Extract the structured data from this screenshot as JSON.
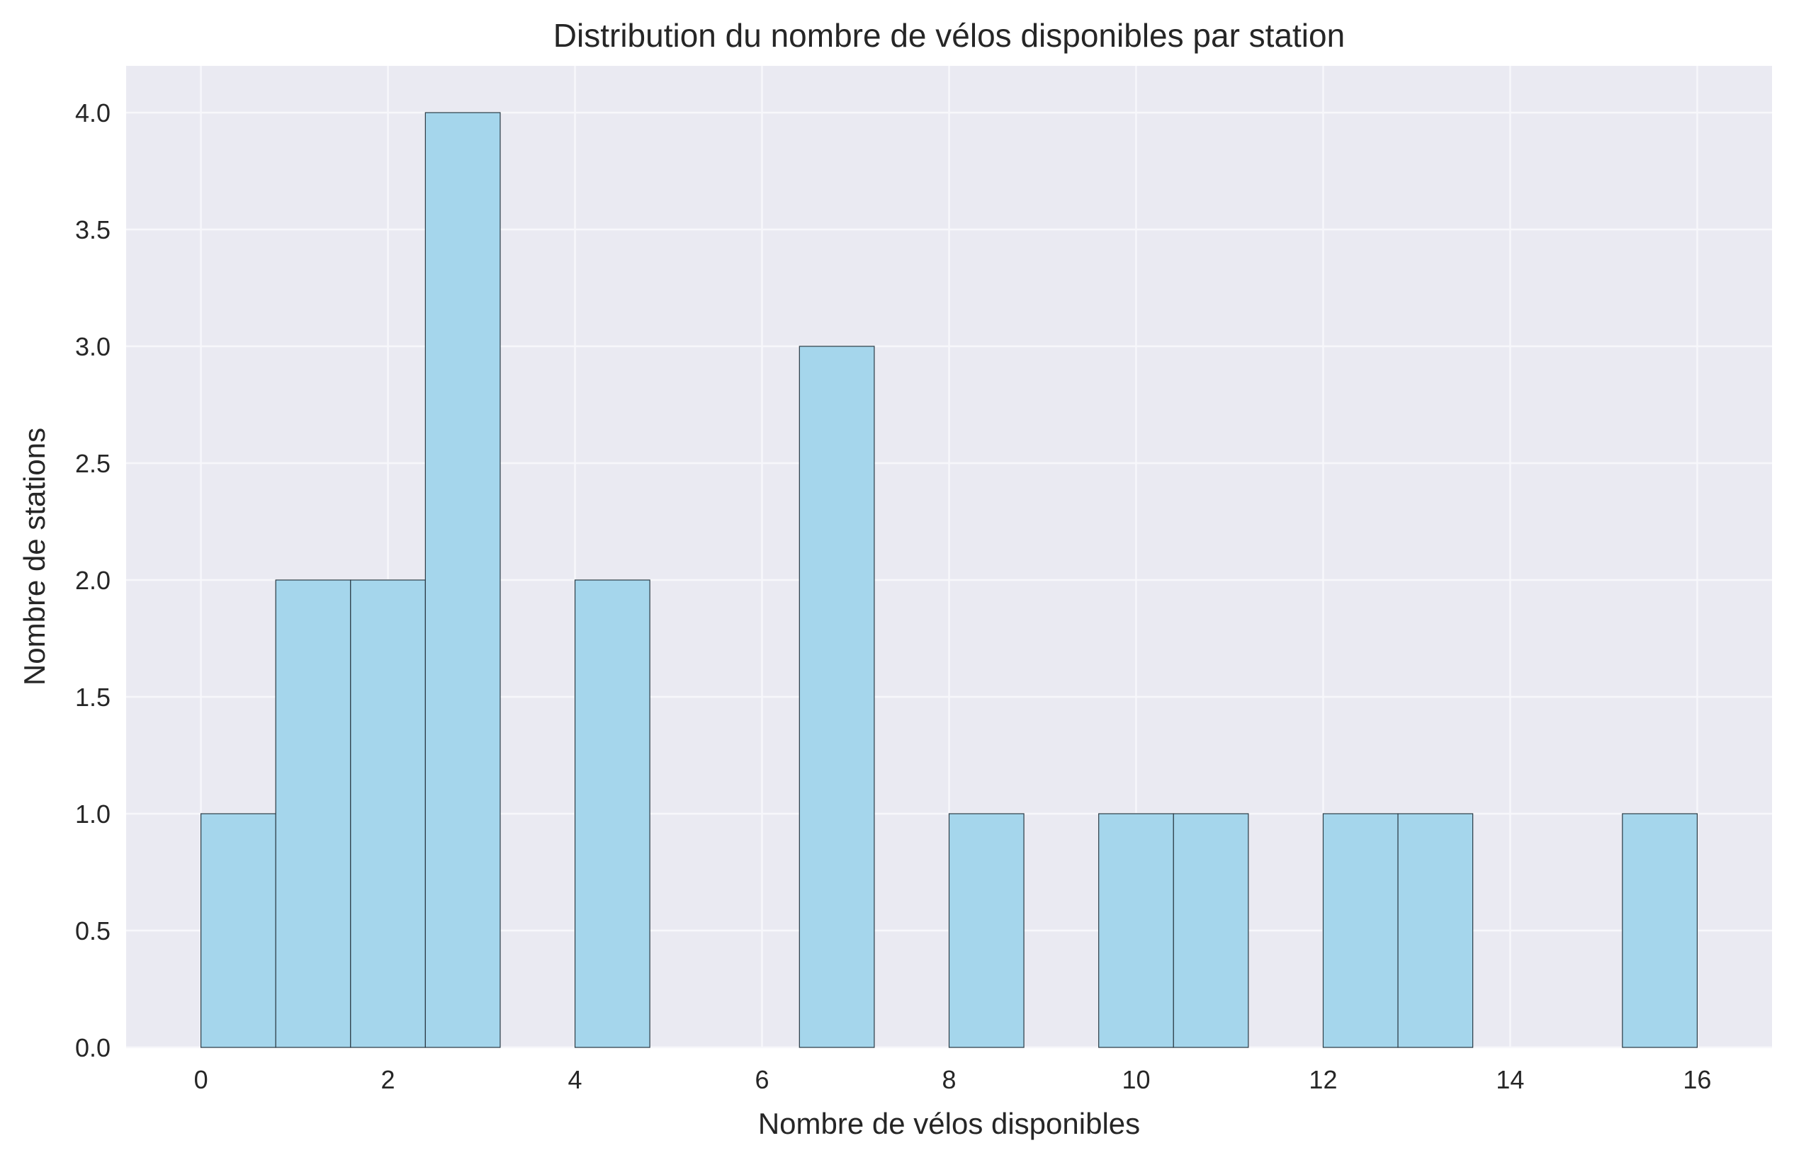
{
  "chart_data": {
    "type": "bar",
    "title": "Distribution du nombre de vélos disponibles par station",
    "xlabel": "Nombre de vélos disponibles",
    "ylabel": "Nombre de stations",
    "xlim": [
      -0.8,
      16.8
    ],
    "ylim": [
      0,
      4.2
    ],
    "x_ticks": [
      0,
      2,
      4,
      6,
      8,
      10,
      12,
      14,
      16
    ],
    "x_tick_labels": [
      "0",
      "2",
      "4",
      "6",
      "8",
      "10",
      "12",
      "14",
      "16"
    ],
    "y_ticks": [
      0,
      0.5,
      1,
      1.5,
      2,
      2.5,
      3,
      3.5,
      4
    ],
    "y_tick_labels": [
      "0.0",
      "0.5",
      "1.0",
      "1.5",
      "2.0",
      "2.5",
      "3.0",
      "3.5",
      "4.0"
    ],
    "bin_width": 0.8,
    "bins": [
      {
        "start": 0.0,
        "end": 0.8,
        "count": 1
      },
      {
        "start": 0.8,
        "end": 1.6,
        "count": 2
      },
      {
        "start": 1.6,
        "end": 2.4,
        "count": 2
      },
      {
        "start": 2.4,
        "end": 3.2,
        "count": 4
      },
      {
        "start": 3.2,
        "end": 4.0,
        "count": 0
      },
      {
        "start": 4.0,
        "end": 4.8,
        "count": 2
      },
      {
        "start": 4.8,
        "end": 5.6,
        "count": 0
      },
      {
        "start": 5.6,
        "end": 6.4,
        "count": 0
      },
      {
        "start": 6.4,
        "end": 7.2,
        "count": 3
      },
      {
        "start": 7.2,
        "end": 8.0,
        "count": 0
      },
      {
        "start": 8.0,
        "end": 8.8,
        "count": 1
      },
      {
        "start": 8.8,
        "end": 9.6,
        "count": 0
      },
      {
        "start": 9.6,
        "end": 10.4,
        "count": 1
      },
      {
        "start": 10.4,
        "end": 11.2,
        "count": 1
      },
      {
        "start": 11.2,
        "end": 12.0,
        "count": 0
      },
      {
        "start": 12.0,
        "end": 12.8,
        "count": 1
      },
      {
        "start": 12.8,
        "end": 13.6,
        "count": 1
      },
      {
        "start": 13.6,
        "end": 14.4,
        "count": 0
      },
      {
        "start": 14.4,
        "end": 15.2,
        "count": 0
      },
      {
        "start": 15.2,
        "end": 16.0,
        "count": 1
      }
    ],
    "grid": true,
    "legend": false,
    "colors": {
      "bar_fill": "#a5d6ec",
      "bar_edge": "#2a3a44",
      "plot_background": "#eaeaf2",
      "grid": "#f7f7fb",
      "text": "#262626"
    }
  }
}
